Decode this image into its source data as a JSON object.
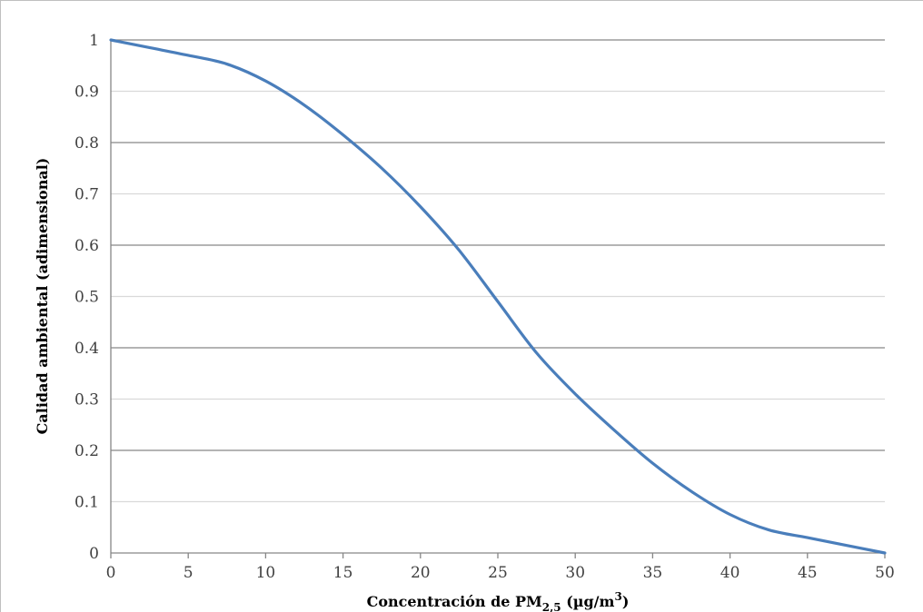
{
  "chart_data": {
    "type": "line",
    "title": "",
    "xlabel": {
      "main": "Concentración de PM",
      "sub": "2,5",
      "unit_pre": " (µg/m",
      "sup": "3",
      "unit_post": ")"
    },
    "ylabel": "Calidad ambiental (adimensional)",
    "xlim": [
      0,
      50
    ],
    "ylim": [
      0,
      1
    ],
    "xticks": [
      "0",
      "5",
      "10",
      "15",
      "20",
      "25",
      "30",
      "35",
      "40",
      "45",
      "50"
    ],
    "yticks": [
      "0",
      "0.1",
      "0.2",
      "0.3",
      "0.4",
      "0.5",
      "0.6",
      "0.7",
      "0.8",
      "0.9",
      "1"
    ],
    "grid": true,
    "legend": "none",
    "series": [
      {
        "color": "#4a7ebb",
        "x": [
          0,
          2.5,
          5,
          7.5,
          10,
          12.5,
          15,
          17.5,
          20,
          22.5,
          25,
          27.5,
          30,
          32.5,
          35,
          37.5,
          40,
          42.5,
          45,
          47.5,
          50
        ],
        "y": [
          1.0,
          0.985,
          0.97,
          0.953,
          0.92,
          0.873,
          0.815,
          0.75,
          0.675,
          0.59,
          0.49,
          0.39,
          0.31,
          0.24,
          0.175,
          0.12,
          0.075,
          0.045,
          0.03,
          0.015,
          0.0
        ]
      }
    ]
  }
}
